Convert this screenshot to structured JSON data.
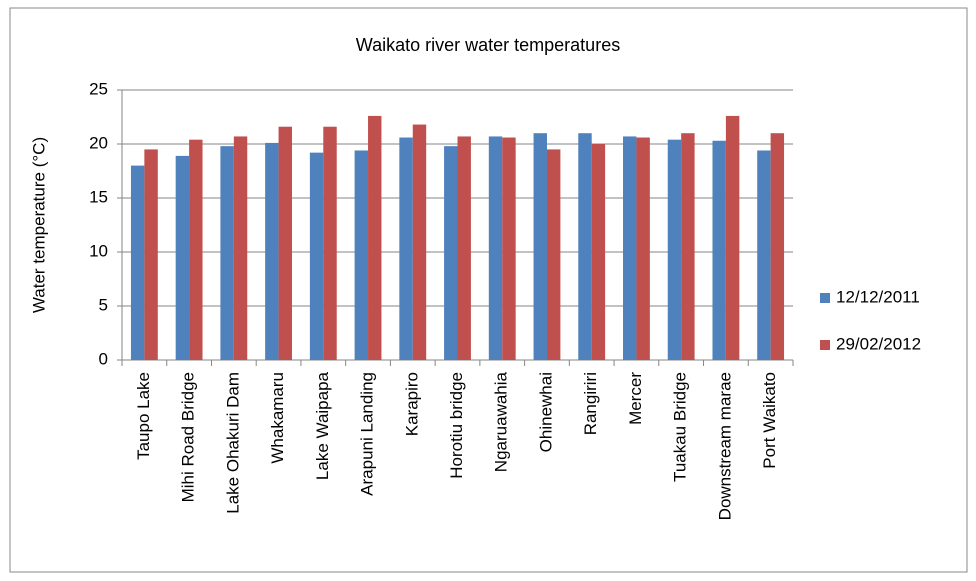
{
  "chart_data": {
    "type": "bar",
    "title": "Waikato river water temperatures",
    "y_label": "Water temperature (°C)",
    "categories": [
      "Taupo Lake",
      "Mihi Road Bridge",
      "Lake Ohakuri Dam",
      "Whakamaru",
      "Lake Waipapa",
      "Arapuni Landing",
      "Karapiro",
      "Horotiu bridge",
      "Ngaruawahia",
      "Ohinewhai",
      "Rangiriri",
      "Mercer",
      "Tuakau Bridge",
      "Downstream marae",
      "Port Waikato"
    ],
    "series": [
      {
        "name": "12/12/2011",
        "color": "#4f81bd",
        "values": [
          18.0,
          18.9,
          19.8,
          20.1,
          19.2,
          19.4,
          20.6,
          19.8,
          20.7,
          21.0,
          21.0,
          20.7,
          20.4,
          20.3,
          19.4
        ]
      },
      {
        "name": "29/02/2012",
        "color": "#c0504d",
        "values": [
          19.5,
          20.4,
          20.7,
          21.6,
          21.6,
          22.6,
          21.8,
          20.7,
          20.6,
          19.5,
          20.0,
          20.6,
          21.0,
          22.6,
          21.0
        ]
      }
    ],
    "ylim": [
      0,
      25
    ],
    "yticks": [
      0,
      5,
      10,
      15,
      20,
      25
    ],
    "grid": true,
    "legend": "right"
  }
}
